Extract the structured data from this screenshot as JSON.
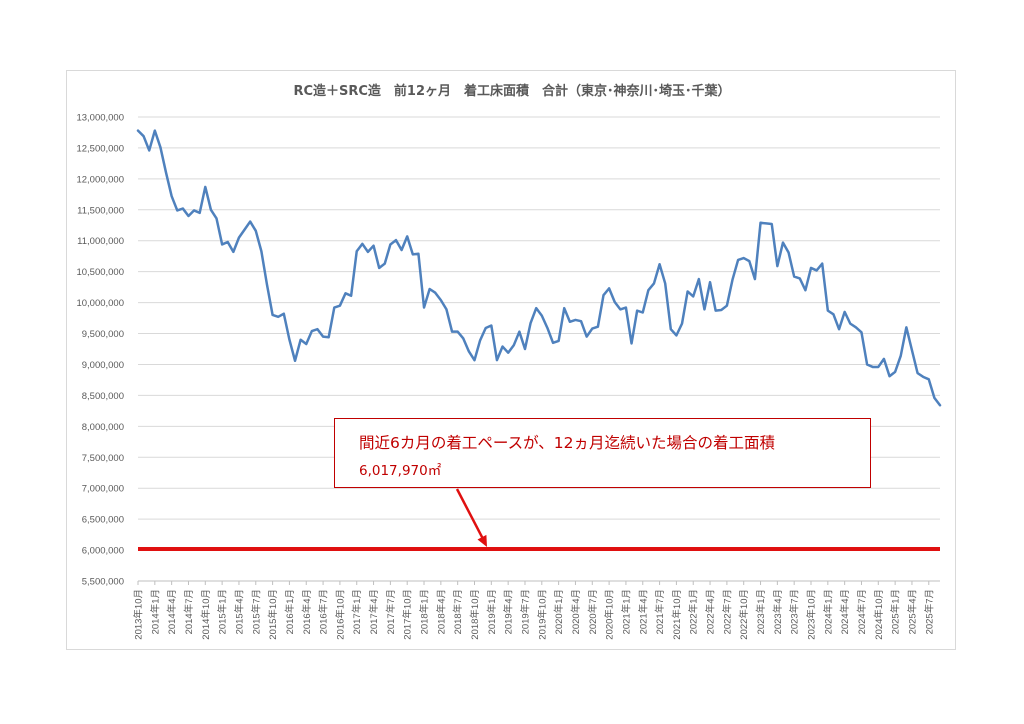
{
  "chart_data": {
    "type": "line",
    "title": "RC造＋SRC造　前12ヶ月　着工床面積　合計（東京･神奈川･埼玉･千葉）",
    "xlabel": "",
    "ylabel": "",
    "ylim": [
      5500000,
      13000000
    ],
    "yticks": [
      "13,000,000",
      "12,500,000",
      "12,000,000",
      "11,500,000",
      "11,000,000",
      "10,500,000",
      "10,000,000",
      "9,500,000",
      "9,000,000",
      "8,500,000",
      "8,000,000",
      "7,500,000",
      "7,000,000",
      "6,500,000",
      "6,000,000",
      "5,500,000"
    ],
    "ytick_values": [
      13000000,
      12500000,
      12000000,
      11500000,
      11000000,
      10500000,
      10000000,
      9500000,
      9000000,
      8500000,
      8000000,
      7500000,
      7000000,
      6500000,
      6000000,
      5500000
    ],
    "x_tick_labels": [
      "2013年10月",
      "2014年1月",
      "2014年4月",
      "2014年7月",
      "2014年10月",
      "2015年1月",
      "2015年4月",
      "2015年7月",
      "2015年10月",
      "2016年1月",
      "2016年4月",
      "2016年7月",
      "2016年10月",
      "2017年1月",
      "2017年4月",
      "2017年7月",
      "2017年10月",
      "2018年1月",
      "2018年4月",
      "2018年7月",
      "2018年10月",
      "2019年1月",
      "2019年4月",
      "2019年7月",
      "2019年10月",
      "2020年1月",
      "2020年4月",
      "2020年7月",
      "2020年10月",
      "2021年1月",
      "2021年4月",
      "2021年7月",
      "2021年10月",
      "2022年1月",
      "2022年4月",
      "2022年7月",
      "2022年10月",
      "2023年1月",
      "2023年4月",
      "2023年7月",
      "2023年10月",
      "2024年1月",
      "2024年4月",
      "2024年7月",
      "2024年10月",
      "2025年1月",
      "2025年4月",
      "2025年7月"
    ],
    "grid": true,
    "legend": "none",
    "series": [
      {
        "color": "#4f81bd",
        "start": "2013年10月",
        "frequency": "monthly",
        "values": [
          12780000,
          12690000,
          12460000,
          12780000,
          12510000,
          12100000,
          11720000,
          11490000,
          11520000,
          11400000,
          11490000,
          11450000,
          11870000,
          11500000,
          11360000,
          10940000,
          10980000,
          10820000,
          11050000,
          11180000,
          11310000,
          11160000,
          10830000,
          10290000,
          9800000,
          9770000,
          9820000,
          9400000,
          9060000,
          9400000,
          9330000,
          9540000,
          9570000,
          9450000,
          9440000,
          9920000,
          9950000,
          10150000,
          10110000,
          10830000,
          10950000,
          10820000,
          10920000,
          10560000,
          10630000,
          10940000,
          11010000,
          10850000,
          11070000,
          10780000,
          10790000,
          9920000,
          10220000,
          10160000,
          10040000,
          9890000,
          9530000,
          9530000,
          9420000,
          9210000,
          9070000,
          9390000,
          9590000,
          9630000,
          9070000,
          9290000,
          9190000,
          9310000,
          9530000,
          9250000,
          9670000,
          9910000,
          9790000,
          9590000,
          9350000,
          9380000,
          9910000,
          9690000,
          9720000,
          9700000,
          9450000,
          9580000,
          9610000,
          10120000,
          10230000,
          10010000,
          9890000,
          9920000,
          9340000,
          9870000,
          9840000,
          10200000,
          10310000,
          10620000,
          10310000,
          9570000,
          9470000,
          9660000,
          10180000,
          10100000,
          10380000,
          9890000,
          10330000,
          9870000,
          9880000,
          9950000,
          10370000,
          10690000,
          10720000,
          10670000,
          10380000,
          11290000,
          11280000,
          11270000,
          10590000,
          10970000,
          10810000,
          10420000,
          10390000,
          10200000,
          10560000,
          10520000,
          10630000,
          9870000,
          9810000,
          9570000,
          9850000,
          9660000,
          9600000,
          9520000,
          9000000,
          8960000,
          8960000,
          9090000,
          8810000,
          8880000,
          9140000,
          9600000,
          9230000,
          8860000,
          8800000,
          8760000,
          8460000,
          8340000
        ]
      }
    ],
    "reference_line": {
      "value": 6017970,
      "color": "#e01010"
    },
    "annotation": {
      "line1": "間近6カ月の着工ペースが、12ヵ月迄続いた場合の着工面積",
      "line2": "6,017,970㎡",
      "color": "#c00000"
    }
  }
}
